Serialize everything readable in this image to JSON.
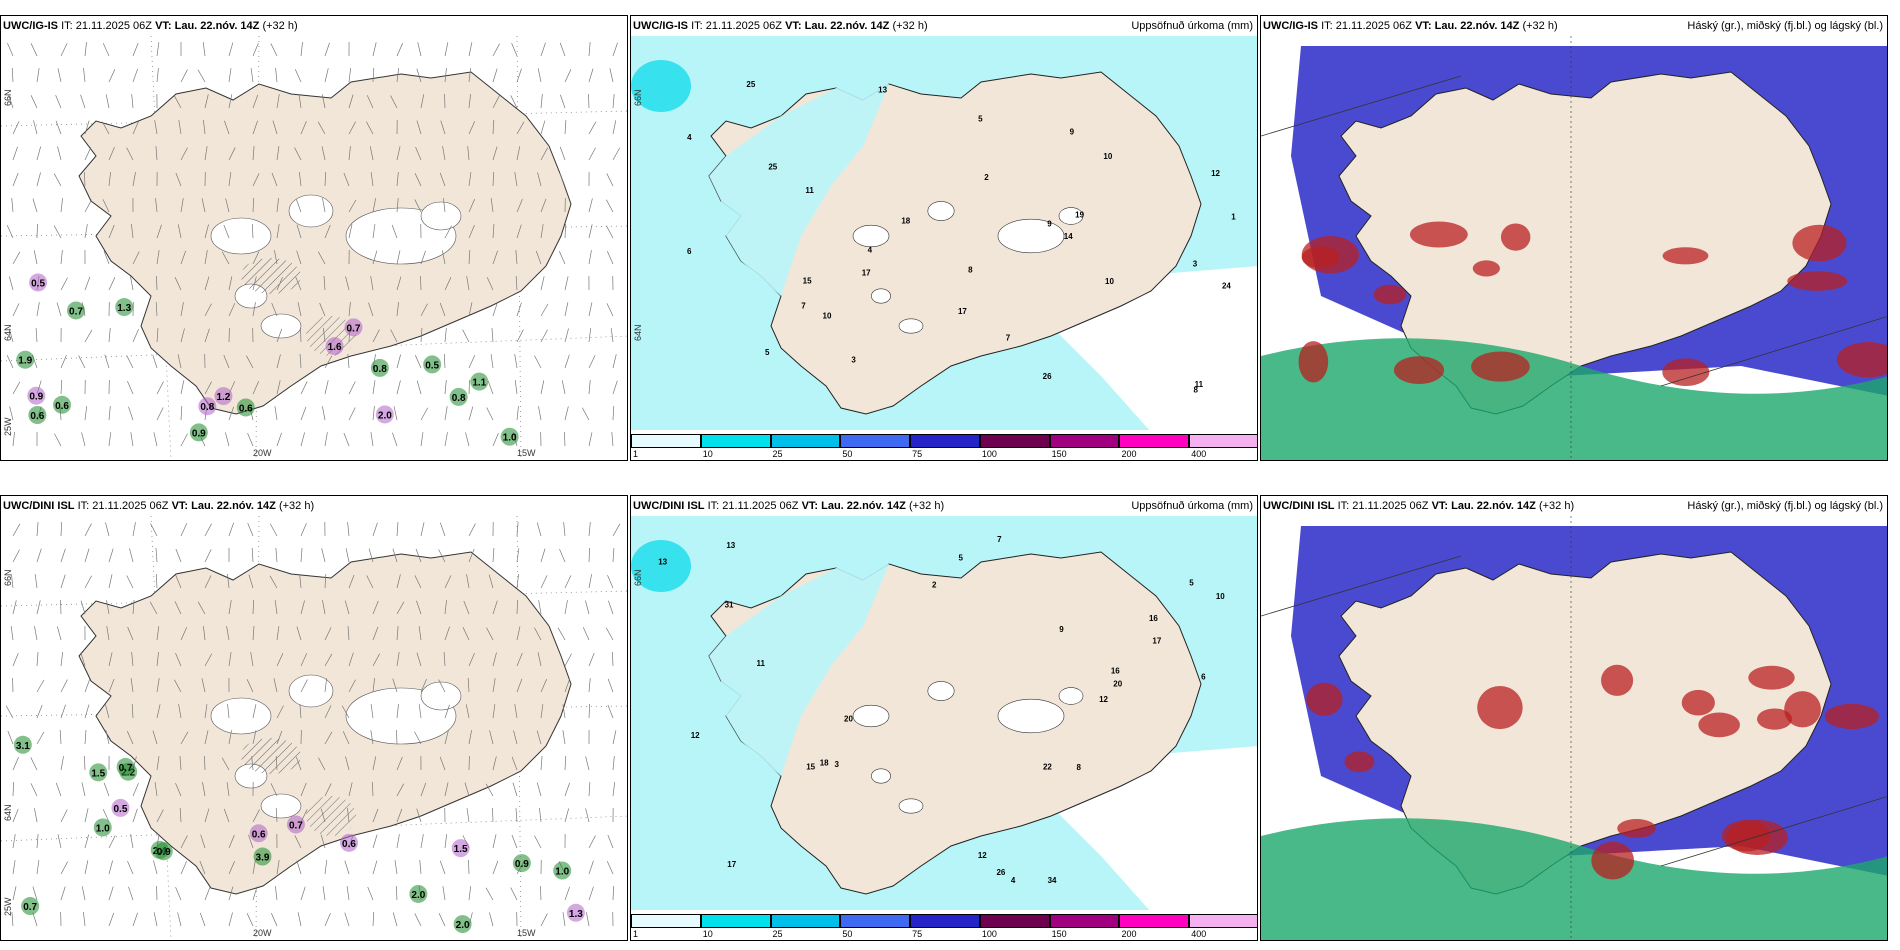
{
  "panels": [
    {
      "id": "p1",
      "model": "UWC/IG-IS",
      "it_label": "IT:",
      "it_value": "21.11.2025 06Z",
      "vt_label": "VT:",
      "vt_value": "Lau. 22.nóv. 14Z",
      "lead": "(+32 h)",
      "right_title": "",
      "values": [
        "0.6",
        "0.8",
        "0.7",
        "0.5",
        "1.1",
        "1.2",
        "0.9",
        "0.5",
        "0.9",
        "0.6",
        "0.8",
        "1.6",
        "1.9",
        "2.0",
        "0.6",
        "0.7",
        "1.0",
        "0.8",
        "1.3"
      ]
    },
    {
      "id": "p2",
      "model": "UWC/IG-IS",
      "it_label": "IT:",
      "it_value": "21.11.2025 06Z",
      "vt_label": "VT:",
      "vt_value": "Lau. 22.nóv. 14Z",
      "lead": "(+32 h)",
      "right_title": "Uppsöfnuð úrkoma (mm)",
      "values": [
        "26",
        "25",
        "18",
        "8",
        "7",
        "11",
        "10",
        "24",
        "17",
        "15",
        "9",
        "5",
        "10",
        "14",
        "17",
        "25",
        "13",
        "11",
        "10",
        "6",
        "7",
        "3",
        "4",
        "9",
        "12",
        "19",
        "8",
        "5",
        "4",
        "2",
        "1",
        "3"
      ]
    },
    {
      "id": "p3",
      "model": "UWC/IG-IS",
      "it_label": "IT:",
      "it_value": "21.11.2025 06Z",
      "vt_label": "VT:",
      "vt_value": "Lau. 22.nóv. 14Z",
      "lead": "(+32 h)",
      "right_title": "Háský (gr.), miðský (fj.bl.) og lágský (bl.)",
      "values": []
    },
    {
      "id": "p4",
      "model": "UWC/DINI ISL",
      "it_label": "IT:",
      "it_value": "21.11.2025 06Z",
      "vt_label": "VT:",
      "vt_value": "Lau. 22.nóv. 14Z",
      "lead": "(+32 h)",
      "right_title": "",
      "values": [
        "1.5",
        "2.0",
        "3.9",
        "2.2",
        "1.0",
        "0.7",
        "0.7",
        "1.3",
        "2.4",
        "0.5",
        "0.9",
        "0.6",
        "3.1",
        "2.0",
        "0.6",
        "1.0",
        "1.5",
        "0.9",
        "0.7"
      ]
    },
    {
      "id": "p5",
      "model": "UWC/DINI ISL",
      "it_label": "IT:",
      "it_value": "21.11.2025 06Z",
      "vt_label": "VT:",
      "vt_value": "Lau. 22.nóv. 14Z",
      "lead": "(+32 h)",
      "right_title": "Uppsöfnuð úrkoma (mm)",
      "values": [
        "20",
        "26",
        "15",
        "31",
        "22",
        "34",
        "13",
        "12",
        "17",
        "16",
        "13",
        "17",
        "12",
        "11",
        "16",
        "18",
        "12",
        "20",
        "9",
        "7",
        "5",
        "3",
        "4",
        "6",
        "2",
        "10",
        "8",
        "5"
      ]
    },
    {
      "id": "p6",
      "model": "UWC/DINI ISL",
      "it_label": "IT:",
      "it_value": "21.11.2025 06Z",
      "vt_label": "VT:",
      "vt_value": "Lau. 22.nóv. 14Z",
      "lead": "(+32 h)",
      "right_title": "Háský (gr.), miðský (fj.bl.) og lágský (bl.)",
      "values": []
    }
  ],
  "axis_labels": {
    "lat_66": "66N",
    "lat_64": "64N",
    "lon_25": "25W",
    "lon_20": "20W",
    "lon_15": "15W"
  },
  "colorbar": {
    "ticks": [
      "1",
      "10",
      "25",
      "50",
      "75",
      "100",
      "150",
      "200",
      "400"
    ],
    "colors": [
      "#e6fbff",
      "#00e0ea",
      "#00bfe8",
      "#3d6af0",
      "#2424c8",
      "#6e0050",
      "#a00080",
      "#ff00c0",
      "#f5b0f0"
    ]
  },
  "colors": {
    "land": "#f2e6d9",
    "sea_precip": "#b8f5f8",
    "sea": "#ffffff",
    "midcloud": "#4a4ad0",
    "highcloud_green": "#1ca86c",
    "lowcloud_red": "#b82020",
    "wind_green": "#1e8a2a",
    "wind_purple": "#b060c8"
  }
}
